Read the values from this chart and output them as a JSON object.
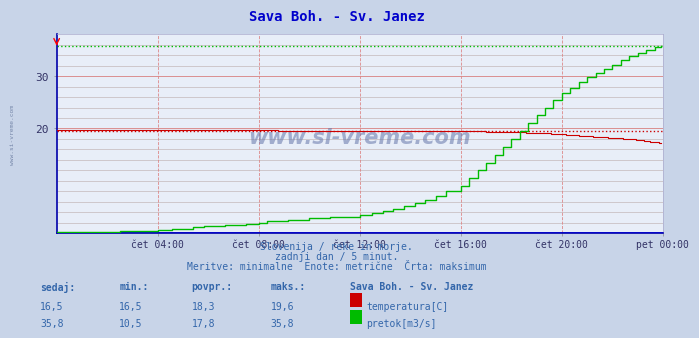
{
  "title": "Sava Boh. - Sv. Janez",
  "title_color": "#0000cc",
  "bg_color": "#c8d4e8",
  "plot_bg_color": "#e8eef8",
  "grid_color_red": "#dd8888",
  "grid_color_light": "#ccaaaa",
  "xlabel_ticks": [
    "čet 04:00",
    "čet 08:00",
    "čet 12:00",
    "čet 16:00",
    "čet 20:00",
    "pet 00:00"
  ],
  "ylabel_ticks": [
    20,
    30
  ],
  "ylim": [
    0,
    38
  ],
  "xlim": [
    0,
    288
  ],
  "temp_color": "#cc0000",
  "flow_color": "#00bb00",
  "temp_maks": 19.6,
  "flow_maks": 35.8,
  "subtitle1": "Slovenija / reke in morje.",
  "subtitle2": "zadnji dan / 5 minut.",
  "subtitle3": "Meritve: minimalne  Enote: metrične  Črta: maksimum",
  "text_color": "#3366aa",
  "legend_title": "Sava Boh. - Sv. Janez",
  "legend_temp": "temperatura[C]",
  "legend_flow": "pretok[m3/s]",
  "watermark": "www.si-vreme.com",
  "watermark_color": "#8899bb",
  "left_label": "www.si-vreme.com"
}
